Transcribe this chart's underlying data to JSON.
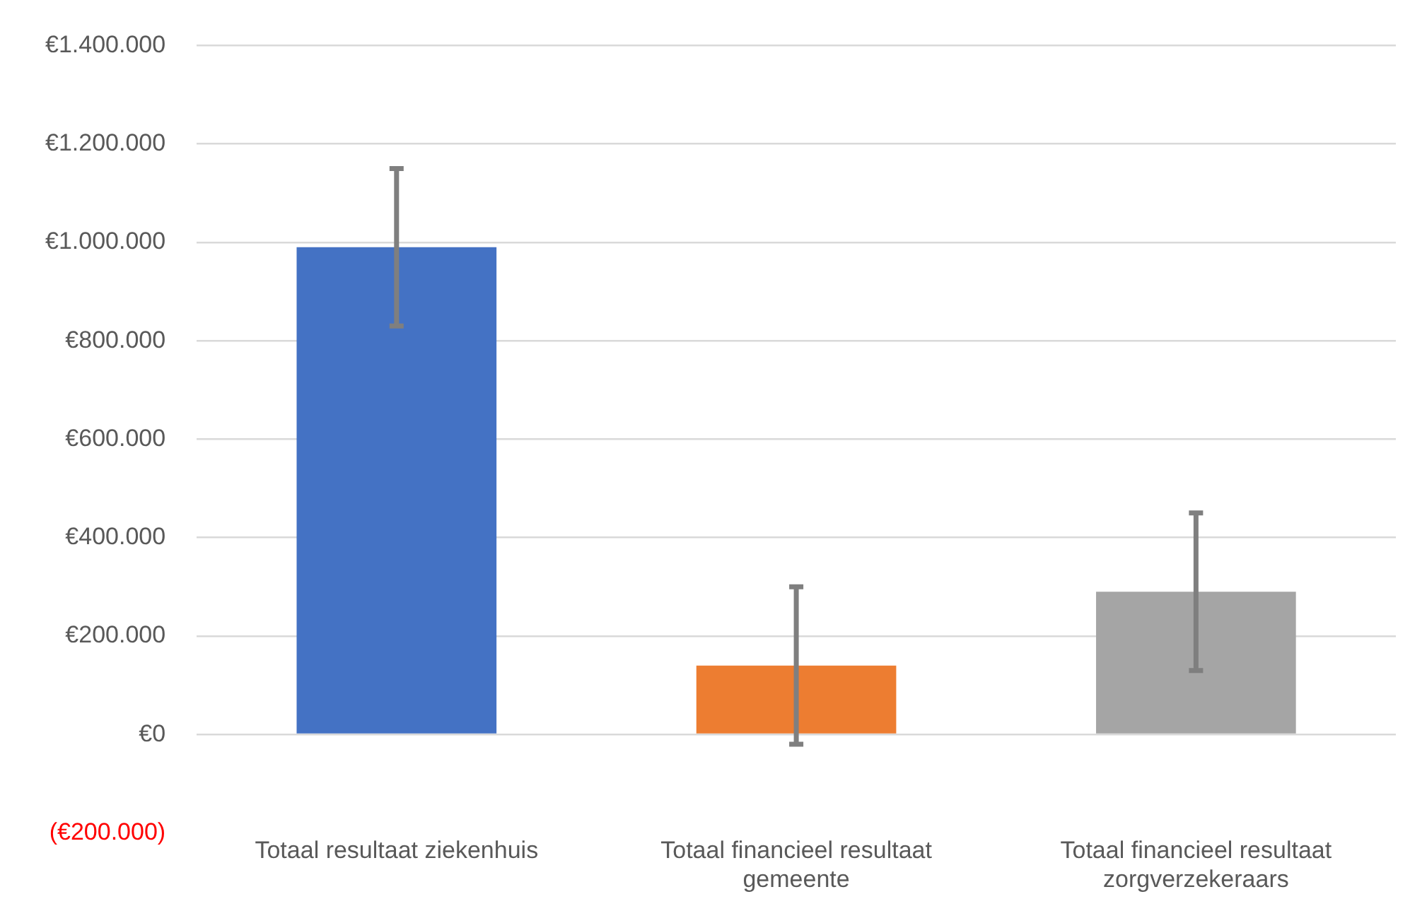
{
  "chart_data": {
    "type": "bar",
    "categories": [
      "Totaal resultaat ziekenhuis",
      "Totaal financieel resultaat gemeente",
      "Totaal financieel resultaat zorgverzekeraars"
    ],
    "values": [
      990000,
      140000,
      290000
    ],
    "colors": [
      "#4472c4",
      "#ed7d31",
      "#a5a5a5"
    ],
    "errors": [
      160000,
      160000,
      160000
    ],
    "ylim": [
      -200000,
      1400000
    ],
    "yticks": [
      {
        "value": -200000,
        "label": "(€200.000)"
      },
      {
        "value": 0,
        "label": "€0"
      },
      {
        "value": 200000,
        "label": "€200.000"
      },
      {
        "value": 400000,
        "label": "€400.000"
      },
      {
        "value": 600000,
        "label": "€600.000"
      },
      {
        "value": 800000,
        "label": "€800.000"
      },
      {
        "value": 1000000,
        "label": "€1.000.000"
      },
      {
        "value": 1200000,
        "label": "€1.200.000"
      },
      {
        "value": 1400000,
        "label": "€1.400.000"
      }
    ],
    "grid": "y",
    "legend": false
  }
}
